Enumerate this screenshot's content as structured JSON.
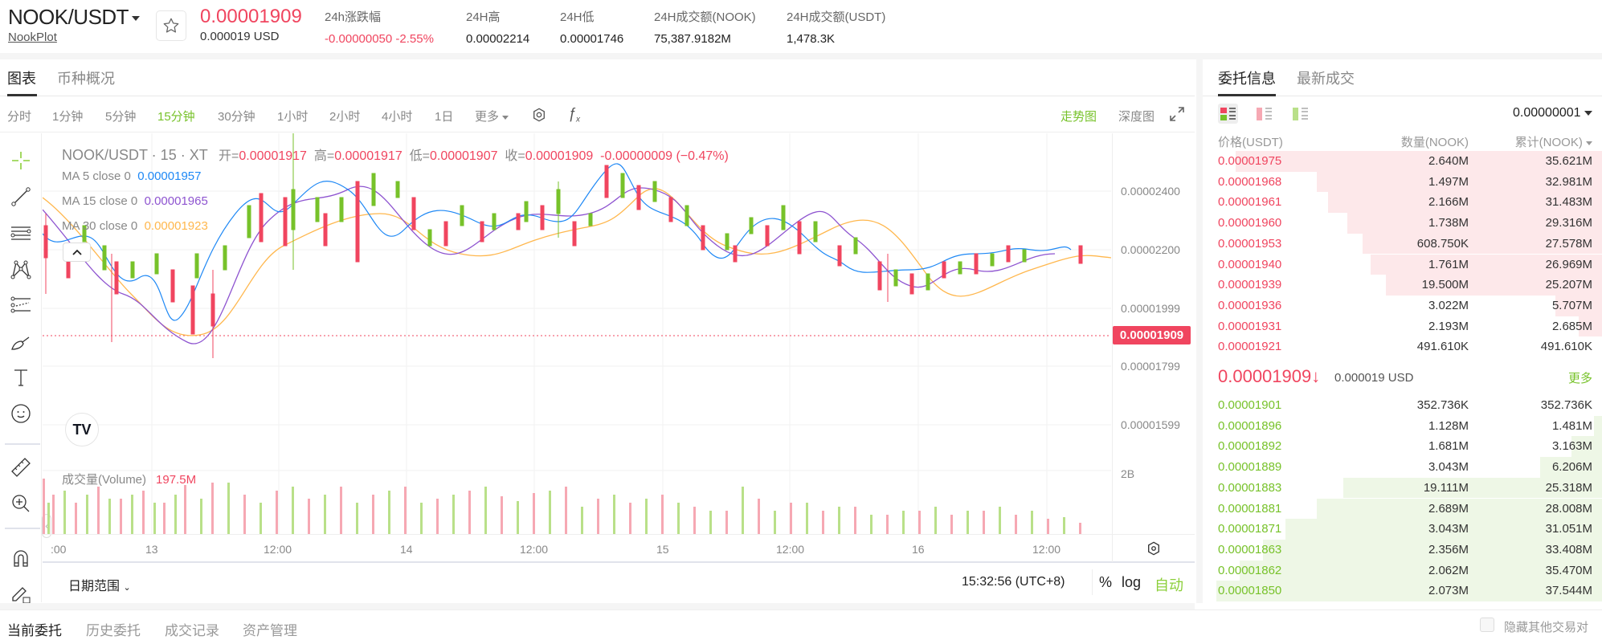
{
  "header": {
    "pair": "NOOK/USDT",
    "project": "NookPlot",
    "last_price": "0.00001909",
    "last_price_usd": "0.000019 USD",
    "stats": [
      {
        "label": "24h涨跌幅",
        "value": "-0.00000050 -2.55%",
        "color": "#f0455f"
      },
      {
        "label": "24H高",
        "value": "0.00002214"
      },
      {
        "label": "24H低",
        "value": "0.00001746"
      },
      {
        "label": "24H成交额(NOOK)",
        "value": "75,387.9182M"
      },
      {
        "label": "24H成交额(USDT)",
        "value": "1,478.3K"
      }
    ]
  },
  "main_tabs": [
    {
      "label": "图表",
      "active": true
    },
    {
      "label": "币种概况",
      "active": false
    }
  ],
  "toolbar": {
    "intervals": [
      "分时",
      "1分钟",
      "5分钟",
      "15分钟",
      "30分钟",
      "1小时",
      "2小时",
      "4小时",
      "1日"
    ],
    "active_interval": "15分钟",
    "more_label": "更多",
    "trend_view": "走势图",
    "depth_view": "深度图"
  },
  "chart": {
    "symbol_line": "NOOK/USDT · 15 · XT",
    "ohlc": {
      "open_label": "开=",
      "open": "0.00001917",
      "high_label": "高=",
      "high": "0.00001917",
      "low_label": "低=",
      "low": "0.00001907",
      "close_label": "收=",
      "close": "0.00001909",
      "change": "-0.00000009 (−0.47%)"
    },
    "ma": [
      {
        "label": "MA 5 close 0",
        "value": "0.00001957",
        "color": "#1e88f5"
      },
      {
        "label": "MA 15 close 0",
        "value": "0.00001965",
        "color": "#8e54d0"
      },
      {
        "label": "MA 30 close 0",
        "value": "0.00001923",
        "color": "#ffb74d"
      }
    ],
    "price_ticks": [
      "0.00002400",
      "0.00002200",
      "0.00001999",
      "0.00001799",
      "0.00001599"
    ],
    "current_price_label": "0.00001909",
    "volume_label": "成交量(Volume)",
    "volume_value": "197.5M",
    "volume_axis_tick": "2B",
    "time_ticks": [
      ":00",
      "13",
      "12:00",
      "14",
      "12:00",
      "15",
      "12:00",
      "16",
      "12:00"
    ],
    "date_range_label": "日期范围",
    "clock": "15:32:56 (UTC+8)",
    "pct_label": "%",
    "log_label": "log",
    "auto_label": "自动"
  },
  "order_book": {
    "tabs": [
      {
        "label": "委托信息",
        "active": true
      },
      {
        "label": "最新成交",
        "active": false
      }
    ],
    "precision": "0.00000001",
    "columns": [
      "价格(USDT)",
      "数量(NOOK)",
      "累计(NOOK)"
    ],
    "asks": [
      {
        "price": "0.00001975",
        "qty": "2.640M",
        "total": "35.621M",
        "depth": 0.95
      },
      {
        "price": "0.00001968",
        "qty": "1.497M",
        "total": "32.981M",
        "depth": 0.74
      },
      {
        "price": "0.00001961",
        "qty": "2.166M",
        "total": "31.483M",
        "depth": 0.71
      },
      {
        "price": "0.00001960",
        "qty": "1.738M",
        "total": "29.316M",
        "depth": 0.66
      },
      {
        "price": "0.00001953",
        "qty": "608.750K",
        "total": "27.578M",
        "depth": 0.62
      },
      {
        "price": "0.00001940",
        "qty": "1.761M",
        "total": "26.969M",
        "depth": 0.6
      },
      {
        "price": "0.00001939",
        "qty": "19.500M",
        "total": "25.207M",
        "depth": 0.56
      },
      {
        "price": "0.00001936",
        "qty": "3.022M",
        "total": "5.707M",
        "depth": 0.12
      },
      {
        "price": "0.00001931",
        "qty": "2.193M",
        "total": "2.685M",
        "depth": 0.06
      },
      {
        "price": "0.00001921",
        "qty": "491.610K",
        "total": "491.610K",
        "depth": 0.0
      }
    ],
    "mid_price": "0.00001909",
    "mid_arrow": "↓",
    "mid_usd": "0.000019 USD",
    "more_label": "更多",
    "bids": [
      {
        "price": "0.00001901",
        "qty": "352.736K",
        "total": "352.736K",
        "depth": 0.0
      },
      {
        "price": "0.00001896",
        "qty": "1.128M",
        "total": "1.481M",
        "depth": 0.02
      },
      {
        "price": "0.00001892",
        "qty": "1.681M",
        "total": "3.163M",
        "depth": 0.08
      },
      {
        "price": "0.00001889",
        "qty": "3.043M",
        "total": "6.206M",
        "depth": 0.16
      },
      {
        "price": "0.00001883",
        "qty": "19.111M",
        "total": "25.318M",
        "depth": 0.67
      },
      {
        "price": "0.00001881",
        "qty": "2.689M",
        "total": "28.008M",
        "depth": 0.74
      },
      {
        "price": "0.00001871",
        "qty": "3.043M",
        "total": "31.051M",
        "depth": 0.82
      },
      {
        "price": "0.00001863",
        "qty": "2.356M",
        "total": "33.408M",
        "depth": 0.88
      },
      {
        "price": "0.00001862",
        "qty": "2.062M",
        "total": "35.470M",
        "depth": 0.94
      },
      {
        "price": "0.00001850",
        "qty": "2.073M",
        "total": "37.544M",
        "depth": 1.0
      }
    ]
  },
  "bottom_tabs": [
    {
      "label": "当前委托",
      "active": true
    },
    {
      "label": "历史委托",
      "active": false
    },
    {
      "label": "成交记录",
      "active": false
    },
    {
      "label": "资产管理",
      "active": false
    }
  ],
  "hide_other_pairs_label": "隐藏其他交易对",
  "colors": {
    "up": "#77c22a",
    "down": "#f0455f",
    "accent": "#77c22a"
  }
}
